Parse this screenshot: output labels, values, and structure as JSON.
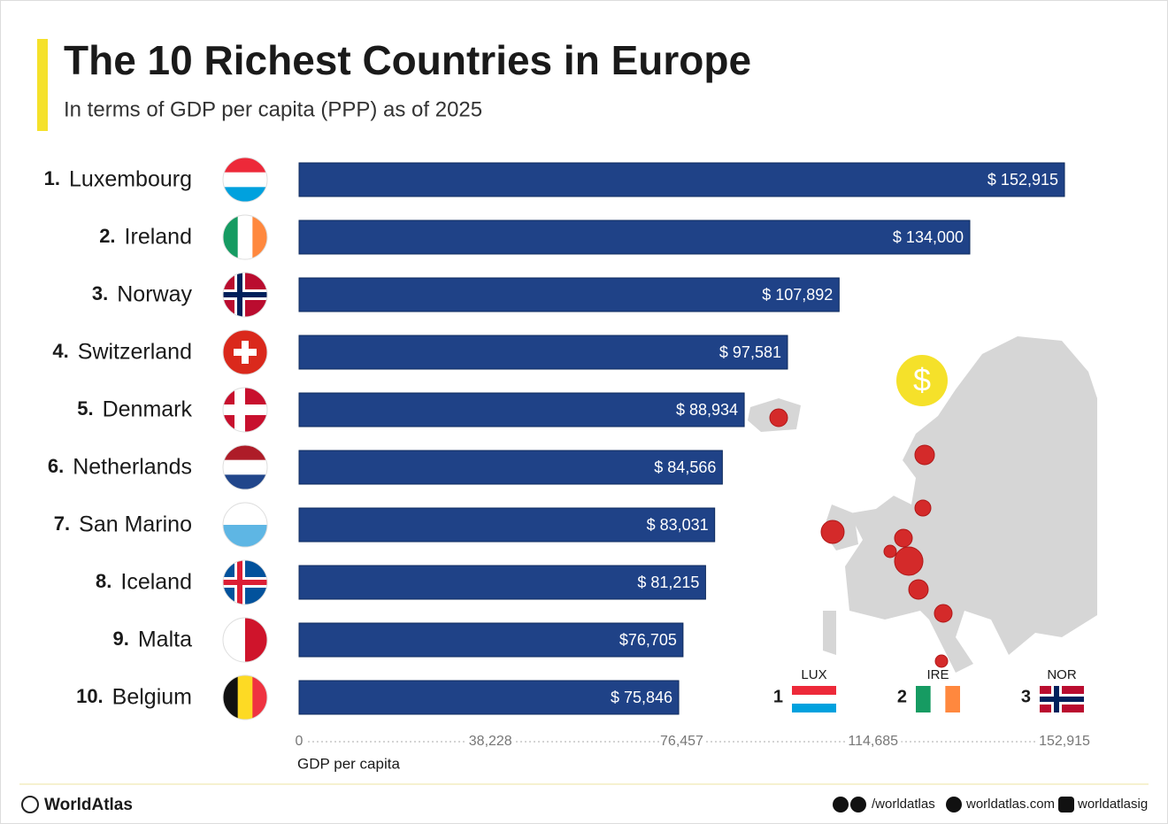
{
  "chart_data": {
    "type": "bar",
    "orientation": "horizontal",
    "title": "The 10 Richest Countries in Europe",
    "subtitle": "In terms of GDP per capita (PPP) as of 2025",
    "rank_labels": [
      "1.",
      "2.",
      "3.",
      "4.",
      "5.",
      "6.",
      "7.",
      "8.",
      "9.",
      "10."
    ],
    "categories": [
      "Luxembourg",
      "Ireland",
      "Norway",
      "Switzerland",
      "Denmark",
      "Netherlands",
      "San Marino",
      "Iceland",
      "Malta",
      "Belgium"
    ],
    "values": [
      152915,
      134000,
      107892,
      97581,
      88934,
      84566,
      83031,
      81215,
      76705,
      75846
    ],
    "value_labels": [
      "$ 152,915",
      "$ 134,000",
      "$ 107,892",
      "$ 97,581",
      "$ 88,934",
      "$ 84,566",
      "$ 83,031",
      "$ 81,215",
      "$76,705",
      "$ 75,846"
    ],
    "color": "#1f4287",
    "xlim": [
      0,
      152915
    ],
    "xticks": [
      0,
      {
        "value": 38228,
        "label": "38,228"
      },
      {
        "value": 76457,
        "label": "76,457"
      },
      {
        "value": 114685,
        "label": "114,685"
      },
      {
        "value": 152915,
        "label": "152,915"
      }
    ],
    "xlabel": "GDP per capita"
  },
  "map": {
    "coin_symbol": "$"
  },
  "podium": [
    {
      "rank": "1",
      "code": "LUX"
    },
    {
      "rank": "2",
      "code": "IRE"
    },
    {
      "rank": "3",
      "code": "NOR"
    }
  ],
  "footer": {
    "brand": "WorldAtlas",
    "social": "/worldatlas",
    "site": "worldatlas.com",
    "instagram": "worldatlasig"
  }
}
